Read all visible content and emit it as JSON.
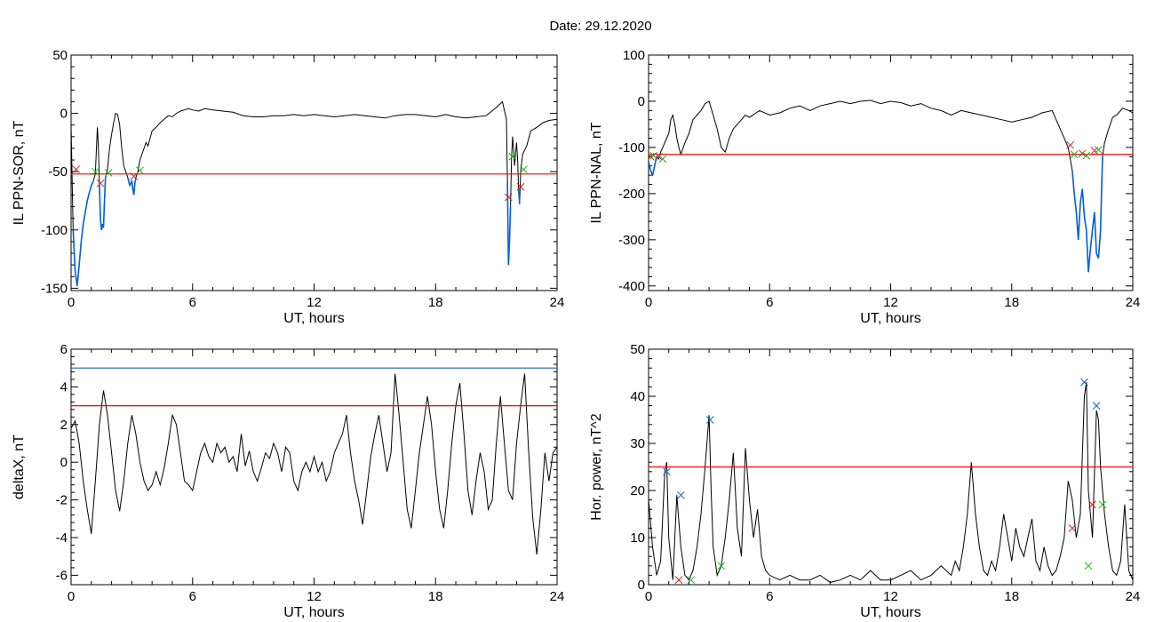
{
  "title": "Date:  29.12.2020",
  "chart_data": [
    {
      "id": "sor",
      "type": "line",
      "xlabel": "UT, hours",
      "ylabel": "IL PPN-SOR, nT",
      "xlim": [
        0,
        24
      ],
      "ylim": [
        -152,
        50
      ],
      "xticks": [
        0,
        6,
        12,
        18,
        24
      ],
      "yticks": [
        -150,
        -100,
        -50,
        0,
        50
      ],
      "threshold": -52,
      "threshold_color": "#ff0000",
      "line_color": "#000000",
      "highlight_color": "#0060e0",
      "series": [
        {
          "x": [
            0,
            0.1,
            0.2,
            0.3,
            0.4,
            0.5,
            0.6,
            0.7,
            0.8,
            0.9,
            1.0,
            1.1,
            1.2,
            1.3,
            1.35,
            1.4,
            1.45,
            1.5,
            1.55,
            1.6,
            1.65,
            1.7,
            1.8,
            1.9,
            2.0,
            2.1,
            2.2,
            2.3,
            2.4,
            2.5,
            2.6,
            2.8,
            2.9,
            3.0,
            3.05,
            3.1,
            3.15,
            3.2,
            3.3,
            3.4,
            3.5,
            3.6,
            3.7,
            3.8,
            4.0,
            4.2,
            4.4,
            4.6,
            4.8,
            5.0,
            5.2,
            5.4,
            5.6,
            5.8,
            6.0,
            6.3,
            6.6,
            7.0,
            7.5,
            8.0,
            8.5,
            9.0,
            9.5,
            10.0,
            10.5,
            11.0,
            11.5,
            12.0,
            12.5,
            13.0,
            13.5,
            14.0,
            14.5,
            15.0,
            15.5,
            16.0,
            16.5,
            17.0,
            17.5,
            18.0,
            18.5,
            19.0,
            19.5,
            20.0,
            20.5,
            21.0,
            21.3,
            21.5,
            21.55,
            21.6,
            21.65,
            21.7,
            21.75,
            21.8,
            21.85,
            21.9,
            21.95,
            22.0,
            22.05,
            22.1,
            22.15,
            22.2,
            22.3,
            22.5,
            22.7,
            23.0,
            23.3,
            23.6,
            24.0
          ],
          "y": [
            -10,
            -100,
            -135,
            -148,
            -130,
            -110,
            -95,
            -85,
            -75,
            -68,
            -62,
            -58,
            -52,
            -12,
            -30,
            -62,
            -90,
            -100,
            -95,
            -98,
            -75,
            -55,
            -48,
            -30,
            -18,
            -8,
            0,
            -1,
            -10,
            -30,
            -45,
            -55,
            -62,
            -58,
            -65,
            -70,
            -60,
            -55,
            -50,
            -40,
            -35,
            -30,
            -25,
            -28,
            -15,
            -12,
            -8,
            -5,
            -2,
            -3,
            0,
            2,
            3,
            4,
            3,
            2,
            4,
            3,
            2,
            1,
            -2,
            -3,
            -3,
            -2,
            -2,
            -1,
            -2,
            -1,
            -2,
            -3,
            -2,
            -1,
            -2,
            -3,
            -4,
            -2,
            -1,
            -1,
            -2,
            -3,
            -1,
            -3,
            -4,
            -3,
            -2,
            5,
            10,
            -5,
            -60,
            -130,
            -110,
            -80,
            -40,
            -20,
            -30,
            -45,
            -35,
            -25,
            -40,
            -65,
            -78,
            -50,
            -35,
            -28,
            -15,
            -12,
            -8,
            -6,
            -5
          ]
        }
      ],
      "markers": [
        {
          "x": 0.25,
          "y": -48,
          "color": "#cc2020"
        },
        {
          "x": 1.2,
          "y": -50,
          "color": "#20b020"
        },
        {
          "x": 1.45,
          "y": -60,
          "color": "#cc2020"
        },
        {
          "x": 1.85,
          "y": -51,
          "color": "#20b020"
        },
        {
          "x": 3.1,
          "y": -54,
          "color": "#cc2020"
        },
        {
          "x": 3.4,
          "y": -49,
          "color": "#20b020"
        },
        {
          "x": 21.6,
          "y": -72,
          "color": "#cc2020"
        },
        {
          "x": 21.8,
          "y": -37,
          "color": "#20b020"
        },
        {
          "x": 22.2,
          "y": -63,
          "color": "#cc2020"
        },
        {
          "x": 22.35,
          "y": -48,
          "color": "#20b020"
        }
      ]
    },
    {
      "id": "nal",
      "type": "line",
      "xlabel": "UT, hours",
      "ylabel": "IL PPN-NAL, nT",
      "xlim": [
        0,
        24
      ],
      "ylim": [
        -410,
        100
      ],
      "xticks": [
        0,
        6,
        12,
        18,
        24
      ],
      "yticks": [
        -400,
        -300,
        -200,
        -100,
        0,
        100
      ],
      "threshold": -115,
      "threshold_color": "#ff0000",
      "line_color": "#000000",
      "highlight_color": "#0060e0",
      "series": [
        {
          "x": [
            0,
            0.1,
            0.2,
            0.3,
            0.4,
            0.5,
            0.6,
            0.7,
            0.8,
            0.9,
            1.0,
            1.1,
            1.2,
            1.3,
            1.4,
            1.5,
            1.6,
            1.8,
            2.0,
            2.2,
            2.4,
            2.6,
            2.8,
            3.0,
            3.2,
            3.4,
            3.6,
            3.8,
            4.0,
            4.2,
            4.4,
            4.6,
            4.8,
            5.0,
            5.5,
            6.0,
            6.5,
            7.0,
            7.5,
            8.0,
            8.5,
            9.0,
            9.5,
            10.0,
            10.5,
            11.0,
            11.5,
            12.0,
            12.5,
            13.0,
            13.5,
            14.0,
            14.5,
            15.0,
            15.5,
            16.0,
            16.5,
            17.0,
            17.5,
            18.0,
            18.5,
            19.0,
            19.5,
            20.0,
            20.4,
            20.8,
            21.0,
            21.1,
            21.2,
            21.3,
            21.4,
            21.5,
            21.6,
            21.7,
            21.8,
            21.9,
            22.0,
            22.1,
            22.2,
            22.3,
            22.4,
            22.5,
            22.6,
            22.8,
            23.0,
            23.2,
            23.5,
            23.8,
            24.0
          ],
          "y": [
            -130,
            -150,
            -160,
            -140,
            -120,
            -125,
            -110,
            -100,
            -90,
            -80,
            -70,
            -40,
            -30,
            -50,
            -80,
            -100,
            -115,
            -90,
            -70,
            -40,
            -30,
            -20,
            -5,
            0,
            -30,
            -60,
            -100,
            -110,
            -80,
            -60,
            -50,
            -40,
            -30,
            -35,
            -20,
            -30,
            -25,
            -15,
            -10,
            -20,
            -10,
            -5,
            0,
            -5,
            0,
            2,
            -5,
            0,
            -3,
            -10,
            -5,
            -15,
            -20,
            -30,
            -20,
            -25,
            -30,
            -35,
            -40,
            -45,
            -40,
            -35,
            -25,
            -20,
            -60,
            -100,
            -150,
            -200,
            -240,
            -300,
            -220,
            -190,
            -250,
            -280,
            -370,
            -320,
            -280,
            -240,
            -330,
            -340,
            -280,
            -120,
            -90,
            -60,
            -35,
            -30,
            -15,
            -20,
            -25
          ]
        }
      ],
      "markers": [
        {
          "x": 0.1,
          "y": -120,
          "color": "#cc2020"
        },
        {
          "x": 0.25,
          "y": -118,
          "color": "#20b020"
        },
        {
          "x": 0.5,
          "y": -120,
          "color": "#cc2020"
        },
        {
          "x": 0.7,
          "y": -125,
          "color": "#20b020"
        },
        {
          "x": 20.9,
          "y": -95,
          "color": "#cc2020"
        },
        {
          "x": 21.1,
          "y": -115,
          "color": "#20b020"
        },
        {
          "x": 21.5,
          "y": -113,
          "color": "#cc2020"
        },
        {
          "x": 21.7,
          "y": -118,
          "color": "#20b020"
        },
        {
          "x": 22.1,
          "y": -107,
          "color": "#cc2020"
        },
        {
          "x": 22.3,
          "y": -105,
          "color": "#20b020"
        }
      ]
    },
    {
      "id": "deltax",
      "type": "line",
      "xlabel": "UT, hours",
      "ylabel": "deltaX, nT",
      "xlim": [
        0,
        24
      ],
      "ylim": [
        -6.5,
        6
      ],
      "xticks": [
        0,
        6,
        12,
        18,
        24
      ],
      "yticks": [
        -6,
        -4,
        -2,
        0,
        2,
        4,
        6
      ],
      "threshold": 3,
      "threshold_color": "#ff0000",
      "threshold2": 5,
      "threshold2_color": "#1060d0",
      "line_color": "#000000",
      "series": [
        {
          "x": [
            0,
            0.2,
            0.4,
            0.6,
            0.8,
            1.0,
            1.2,
            1.4,
            1.6,
            1.8,
            2.0,
            2.2,
            2.4,
            2.6,
            2.8,
            3.0,
            3.2,
            3.4,
            3.6,
            3.8,
            4.0,
            4.2,
            4.4,
            4.6,
            4.8,
            5.0,
            5.2,
            5.4,
            5.6,
            5.8,
            6.0,
            6.2,
            6.4,
            6.6,
            6.8,
            7.0,
            7.2,
            7.4,
            7.6,
            7.8,
            8.0,
            8.2,
            8.4,
            8.6,
            8.8,
            9.0,
            9.2,
            9.4,
            9.6,
            9.8,
            10.0,
            10.2,
            10.4,
            10.6,
            10.8,
            11.0,
            11.2,
            11.4,
            11.6,
            11.8,
            12.0,
            12.2,
            12.4,
            12.6,
            12.8,
            13.0,
            13.2,
            13.4,
            13.6,
            13.8,
            14.0,
            14.2,
            14.4,
            14.6,
            14.8,
            15.0,
            15.2,
            15.4,
            15.6,
            15.8,
            16.0,
            16.2,
            16.4,
            16.6,
            16.8,
            17.0,
            17.2,
            17.4,
            17.6,
            17.8,
            18.0,
            18.2,
            18.4,
            18.6,
            18.8,
            19.0,
            19.2,
            19.4,
            19.6,
            19.8,
            20.0,
            20.2,
            20.4,
            20.6,
            20.8,
            21.0,
            21.2,
            21.4,
            21.6,
            21.8,
            22.0,
            22.2,
            22.4,
            22.6,
            22.8,
            23.0,
            23.2,
            23.4,
            23.6,
            23.8,
            24.0
          ],
          "y": [
            1.8,
            2.2,
            1.0,
            -1.0,
            -2.5,
            -3.8,
            -1.0,
            2.0,
            3.8,
            2.5,
            0.5,
            -1.5,
            -2.6,
            -1.0,
            1.0,
            2.5,
            1.5,
            0,
            -1.0,
            -1.5,
            -1.2,
            -0.5,
            -1.2,
            -0.3,
            1.0,
            2.5,
            2.0,
            0.5,
            -1.0,
            -1.2,
            -1.5,
            -0.5,
            0.5,
            1.0,
            0.3,
            0,
            1.0,
            0.5,
            0.8,
            0,
            0.3,
            -0.5,
            1.5,
            -0.2,
            0.6,
            -0.5,
            -1.0,
            -0.3,
            0.5,
            0.2,
            1.0,
            0.5,
            -0.5,
            0.8,
            0.5,
            -1.0,
            -1.5,
            -0.5,
            0,
            -0.5,
            0.3,
            -0.5,
            0,
            -1.0,
            -0.5,
            0.5,
            1.0,
            1.5,
            2.5,
            0.5,
            -1.0,
            -2.0,
            -3.3,
            -1.5,
            0.3,
            1.5,
            2.5,
            1.0,
            -0.5,
            0.5,
            4.7,
            2.5,
            0,
            -2.5,
            -3.5,
            -1.5,
            0.5,
            2.0,
            3.5,
            2.0,
            -0.5,
            -2.5,
            -3.5,
            -1.5,
            1.0,
            3.0,
            4.2,
            1.5,
            -1.5,
            -2.8,
            -1.0,
            0.5,
            -0.5,
            -2.5,
            -2.0,
            1.0,
            3.5,
            1.0,
            -1.5,
            -2.0,
            1.0,
            3.0,
            4.7,
            0.5,
            -3.0,
            -4.9,
            -2.5,
            0.5,
            -1.0,
            0.5,
            0.8
          ]
        }
      ]
    },
    {
      "id": "power",
      "type": "line",
      "xlabel": "UT, hours",
      "ylabel": "Hor. power, nT^2",
      "xlim": [
        0,
        24
      ],
      "ylim": [
        0,
        50
      ],
      "xticks": [
        0,
        6,
        12,
        18,
        24
      ],
      "yticks": [
        0,
        10,
        20,
        30,
        40,
        50
      ],
      "threshold": 25,
      "threshold_color": "#ff0000",
      "line_color": "#000000",
      "series": [
        {
          "x": [
            0,
            0.2,
            0.4,
            0.6,
            0.8,
            0.9,
            1.0,
            1.2,
            1.4,
            1.6,
            1.8,
            2.0,
            2.2,
            2.4,
            2.6,
            2.8,
            3.0,
            3.1,
            3.2,
            3.4,
            3.6,
            3.8,
            4.0,
            4.2,
            4.4,
            4.6,
            4.8,
            5.0,
            5.2,
            5.4,
            5.6,
            5.8,
            6.0,
            6.5,
            7.0,
            7.5,
            8.0,
            8.5,
            9.0,
            9.5,
            10.0,
            10.5,
            11.0,
            11.5,
            12.0,
            12.5,
            13.0,
            13.5,
            14.0,
            14.5,
            15.0,
            15.2,
            15.4,
            15.6,
            15.8,
            16.0,
            16.2,
            16.4,
            16.6,
            16.8,
            17.0,
            17.2,
            17.4,
            17.6,
            17.8,
            18.0,
            18.2,
            18.4,
            18.6,
            18.8,
            19.0,
            19.2,
            19.4,
            19.6,
            19.8,
            20.0,
            20.2,
            20.4,
            20.6,
            20.8,
            21.0,
            21.2,
            21.4,
            21.6,
            21.7,
            21.8,
            22.0,
            22.2,
            22.3,
            22.4,
            22.6,
            22.8,
            23.0,
            23.2,
            23.4,
            23.6,
            23.8,
            24.0
          ],
          "y": [
            18,
            8,
            2,
            5,
            24,
            26,
            10,
            1,
            19,
            8,
            2,
            1,
            3,
            8,
            15,
            25,
            36,
            20,
            8,
            2,
            4,
            10,
            18,
            28,
            12,
            6,
            29,
            18,
            10,
            16,
            6,
            3,
            2,
            1,
            2,
            1,
            1,
            2,
            0.5,
            1,
            2,
            1,
            3,
            1,
            1,
            2,
            3,
            1,
            2,
            4,
            2,
            5,
            3,
            8,
            15,
            26,
            15,
            8,
            3,
            2,
            5,
            3,
            8,
            15,
            10,
            5,
            12,
            8,
            6,
            10,
            14,
            5,
            3,
            8,
            4,
            2,
            3,
            6,
            10,
            22,
            18,
            10,
            15,
            40,
            43,
            20,
            10,
            37,
            35,
            25,
            15,
            8,
            3,
            2,
            5,
            17,
            3,
            1
          ]
        }
      ],
      "markers": [
        {
          "x": 0.9,
          "y": 24,
          "color": "#1060d0"
        },
        {
          "x": 1.5,
          "y": 1,
          "color": "#cc2020"
        },
        {
          "x": 1.6,
          "y": 19,
          "color": "#1060d0"
        },
        {
          "x": 2.1,
          "y": 1,
          "color": "#20b020"
        },
        {
          "x": 3.05,
          "y": 35,
          "color": "#1060d0"
        },
        {
          "x": 3.6,
          "y": 4,
          "color": "#20b020"
        },
        {
          "x": 21.0,
          "y": 12,
          "color": "#cc2020"
        },
        {
          "x": 21.6,
          "y": 43,
          "color": "#1060d0"
        },
        {
          "x": 21.8,
          "y": 4,
          "color": "#20b020"
        },
        {
          "x": 22.0,
          "y": 17,
          "color": "#cc2020"
        },
        {
          "x": 22.2,
          "y": 38,
          "color": "#1060d0"
        },
        {
          "x": 22.5,
          "y": 17,
          "color": "#20b020"
        }
      ]
    }
  ]
}
